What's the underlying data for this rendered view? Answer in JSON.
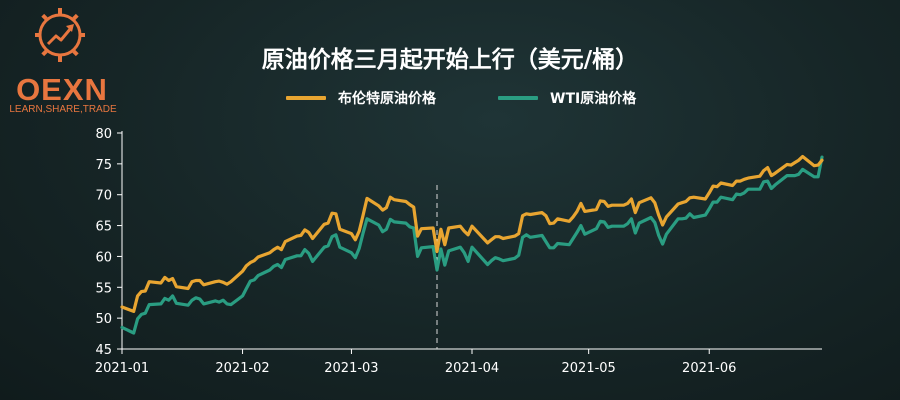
{
  "brand": {
    "name": "OEXN",
    "tagline": "LEARN,SHARE,TRADE",
    "color": "#e8763f"
  },
  "chart_data": {
    "type": "line",
    "title": "原油价格三月起开始上行（美元/桶）",
    "xlabel": "",
    "ylabel": "",
    "ylim": [
      45,
      80
    ],
    "yticks": [
      45,
      50,
      55,
      60,
      65,
      70,
      75,
      80
    ],
    "xlim": [
      "2021-01-01",
      "2021-06-30"
    ],
    "xticks": [
      "2021-01",
      "2021-02",
      "2021-03",
      "2021-04",
      "2021-05",
      "2021-06"
    ],
    "xtick_dates": [
      "2021-01-01",
      "2021-02-01",
      "2021-03-01",
      "2021-04-01",
      "2021-05-01",
      "2021-06-01"
    ],
    "grid": false,
    "legend": "top-center",
    "annotations": [
      {
        "type": "vertical-dashed-line",
        "x": "2021-03-23"
      }
    ],
    "series": [
      {
        "name": "布伦特原油价格",
        "color": "#e8a531",
        "points": [
          [
            "2021-01-01",
            51.8
          ],
          [
            "2021-01-04",
            51.1
          ],
          [
            "2021-01-05",
            53.6
          ],
          [
            "2021-01-06",
            54.3
          ],
          [
            "2021-01-07",
            54.4
          ],
          [
            "2021-01-08",
            55.9
          ],
          [
            "2021-01-11",
            55.7
          ],
          [
            "2021-01-12",
            56.6
          ],
          [
            "2021-01-13",
            56.1
          ],
          [
            "2021-01-14",
            56.4
          ],
          [
            "2021-01-15",
            55.1
          ],
          [
            "2021-01-18",
            54.8
          ],
          [
            "2021-01-19",
            55.9
          ],
          [
            "2021-01-20",
            56.1
          ],
          [
            "2021-01-21",
            56.1
          ],
          [
            "2021-01-22",
            55.4
          ],
          [
            "2021-01-25",
            55.9
          ],
          [
            "2021-01-26",
            56.0
          ],
          [
            "2021-01-27",
            55.8
          ],
          [
            "2021-01-28",
            55.5
          ],
          [
            "2021-01-29",
            55.9
          ],
          [
            "2021-02-01",
            57.6
          ],
          [
            "2021-02-02",
            58.5
          ],
          [
            "2021-02-03",
            59.0
          ],
          [
            "2021-02-04",
            59.3
          ],
          [
            "2021-02-05",
            59.9
          ],
          [
            "2021-02-08",
            60.6
          ],
          [
            "2021-02-09",
            61.1
          ],
          [
            "2021-02-10",
            61.5
          ],
          [
            "2021-02-11",
            61.1
          ],
          [
            "2021-02-12",
            62.4
          ],
          [
            "2021-02-15",
            63.3
          ],
          [
            "2021-02-16",
            63.4
          ],
          [
            "2021-02-17",
            64.3
          ],
          [
            "2021-02-18",
            63.9
          ],
          [
            "2021-02-19",
            62.9
          ],
          [
            "2021-02-22",
            65.2
          ],
          [
            "2021-02-23",
            65.4
          ],
          [
            "2021-02-24",
            67.0
          ],
          [
            "2021-02-25",
            66.9
          ],
          [
            "2021-02-26",
            64.4
          ],
          [
            "2021-03-01",
            63.7
          ],
          [
            "2021-03-02",
            62.7
          ],
          [
            "2021-03-03",
            64.1
          ],
          [
            "2021-03-04",
            66.7
          ],
          [
            "2021-03-05",
            69.4
          ],
          [
            "2021-03-08",
            68.2
          ],
          [
            "2021-03-09",
            67.5
          ],
          [
            "2021-03-10",
            67.9
          ],
          [
            "2021-03-11",
            69.6
          ],
          [
            "2021-03-12",
            69.2
          ],
          [
            "2021-03-15",
            68.9
          ],
          [
            "2021-03-16",
            68.4
          ],
          [
            "2021-03-17",
            68.0
          ],
          [
            "2021-03-18",
            63.3
          ],
          [
            "2021-03-19",
            64.5
          ],
          [
            "2021-03-22",
            64.6
          ],
          [
            "2021-03-23",
            60.8
          ],
          [
            "2021-03-24",
            64.4
          ],
          [
            "2021-03-25",
            61.9
          ],
          [
            "2021-03-26",
            64.6
          ],
          [
            "2021-03-29",
            64.9
          ],
          [
            "2021-03-30",
            64.1
          ],
          [
            "2021-03-31",
            63.5
          ],
          [
            "2021-04-01",
            64.9
          ],
          [
            "2021-04-05",
            62.2
          ],
          [
            "2021-04-06",
            62.7
          ],
          [
            "2021-04-07",
            63.2
          ],
          [
            "2021-04-08",
            63.2
          ],
          [
            "2021-04-09",
            62.9
          ],
          [
            "2021-04-12",
            63.3
          ],
          [
            "2021-04-13",
            63.7
          ],
          [
            "2021-04-14",
            66.6
          ],
          [
            "2021-04-15",
            66.9
          ],
          [
            "2021-04-16",
            66.8
          ],
          [
            "2021-04-19",
            67.1
          ],
          [
            "2021-04-20",
            66.6
          ],
          [
            "2021-04-21",
            65.3
          ],
          [
            "2021-04-22",
            65.4
          ],
          [
            "2021-04-23",
            66.1
          ],
          [
            "2021-04-26",
            65.7
          ],
          [
            "2021-04-27",
            66.4
          ],
          [
            "2021-04-28",
            67.3
          ],
          [
            "2021-04-29",
            68.6
          ],
          [
            "2021-04-30",
            67.3
          ],
          [
            "2021-05-03",
            67.6
          ],
          [
            "2021-05-04",
            69.0
          ],
          [
            "2021-05-05",
            68.9
          ],
          [
            "2021-05-06",
            68.1
          ],
          [
            "2021-05-07",
            68.3
          ],
          [
            "2021-05-10",
            68.3
          ],
          [
            "2021-05-11",
            68.6
          ],
          [
            "2021-05-12",
            69.3
          ],
          [
            "2021-05-13",
            67.1
          ],
          [
            "2021-05-14",
            68.7
          ],
          [
            "2021-05-17",
            69.5
          ],
          [
            "2021-05-18",
            68.7
          ],
          [
            "2021-05-19",
            66.7
          ],
          [
            "2021-05-20",
            65.1
          ],
          [
            "2021-05-21",
            66.4
          ],
          [
            "2021-05-24",
            68.5
          ],
          [
            "2021-05-25",
            68.7
          ],
          [
            "2021-05-26",
            68.9
          ],
          [
            "2021-05-27",
            69.5
          ],
          [
            "2021-05-28",
            69.6
          ],
          [
            "2021-05-31",
            69.3
          ],
          [
            "2021-06-01",
            70.3
          ],
          [
            "2021-06-02",
            71.4
          ],
          [
            "2021-06-03",
            71.3
          ],
          [
            "2021-06-04",
            71.9
          ],
          [
            "2021-06-07",
            71.5
          ],
          [
            "2021-06-08",
            72.2
          ],
          [
            "2021-06-09",
            72.2
          ],
          [
            "2021-06-10",
            72.5
          ],
          [
            "2021-06-11",
            72.7
          ],
          [
            "2021-06-14",
            73.0
          ],
          [
            "2021-06-15",
            73.9
          ],
          [
            "2021-06-16",
            74.4
          ],
          [
            "2021-06-17",
            73.1
          ],
          [
            "2021-06-18",
            73.5
          ],
          [
            "2021-06-21",
            74.9
          ],
          [
            "2021-06-22",
            74.8
          ],
          [
            "2021-06-23",
            75.2
          ],
          [
            "2021-06-24",
            75.6
          ],
          [
            "2021-06-25",
            76.2
          ],
          [
            "2021-06-28",
            74.7
          ],
          [
            "2021-06-29",
            74.8
          ],
          [
            "2021-06-30",
            75.6
          ]
        ]
      },
      {
        "name": "WTI原油价格",
        "color": "#2a9d82",
        "points": [
          [
            "2021-01-01",
            48.5
          ],
          [
            "2021-01-04",
            47.6
          ],
          [
            "2021-01-05",
            49.9
          ],
          [
            "2021-01-06",
            50.6
          ],
          [
            "2021-01-07",
            50.8
          ],
          [
            "2021-01-08",
            52.2
          ],
          [
            "2021-01-11",
            52.3
          ],
          [
            "2021-01-12",
            53.2
          ],
          [
            "2021-01-13",
            52.9
          ],
          [
            "2021-01-14",
            53.6
          ],
          [
            "2021-01-15",
            52.4
          ],
          [
            "2021-01-18",
            52.1
          ],
          [
            "2021-01-19",
            52.9
          ],
          [
            "2021-01-20",
            53.3
          ],
          [
            "2021-01-21",
            53.1
          ],
          [
            "2021-01-22",
            52.3
          ],
          [
            "2021-01-25",
            52.8
          ],
          [
            "2021-01-26",
            52.6
          ],
          [
            "2021-01-27",
            52.9
          ],
          [
            "2021-01-28",
            52.3
          ],
          [
            "2021-01-29",
            52.2
          ],
          [
            "2021-02-01",
            53.6
          ],
          [
            "2021-02-02",
            54.8
          ],
          [
            "2021-02-03",
            56.0
          ],
          [
            "2021-02-04",
            56.2
          ],
          [
            "2021-02-05",
            56.9
          ],
          [
            "2021-02-08",
            57.8
          ],
          [
            "2021-02-09",
            58.4
          ],
          [
            "2021-02-10",
            58.7
          ],
          [
            "2021-02-11",
            58.2
          ],
          [
            "2021-02-12",
            59.5
          ],
          [
            "2021-02-15",
            60.1
          ],
          [
            "2021-02-16",
            60.1
          ],
          [
            "2021-02-17",
            61.1
          ],
          [
            "2021-02-18",
            60.5
          ],
          [
            "2021-02-19",
            59.2
          ],
          [
            "2021-02-22",
            61.5
          ],
          [
            "2021-02-23",
            61.7
          ],
          [
            "2021-02-24",
            63.2
          ],
          [
            "2021-02-25",
            63.5
          ],
          [
            "2021-02-26",
            61.5
          ],
          [
            "2021-03-01",
            60.6
          ],
          [
            "2021-03-02",
            59.8
          ],
          [
            "2021-03-03",
            61.3
          ],
          [
            "2021-03-04",
            63.8
          ],
          [
            "2021-03-05",
            66.1
          ],
          [
            "2021-03-08",
            65.1
          ],
          [
            "2021-03-09",
            64.0
          ],
          [
            "2021-03-10",
            64.4
          ],
          [
            "2021-03-11",
            66.0
          ],
          [
            "2021-03-12",
            65.6
          ],
          [
            "2021-03-15",
            65.4
          ],
          [
            "2021-03-16",
            64.8
          ],
          [
            "2021-03-17",
            64.6
          ],
          [
            "2021-03-18",
            60.0
          ],
          [
            "2021-03-19",
            61.4
          ],
          [
            "2021-03-22",
            61.6
          ],
          [
            "2021-03-23",
            57.8
          ],
          [
            "2021-03-24",
            61.2
          ],
          [
            "2021-03-25",
            58.6
          ],
          [
            "2021-03-26",
            60.9
          ],
          [
            "2021-03-29",
            61.5
          ],
          [
            "2021-03-30",
            60.6
          ],
          [
            "2021-03-31",
            59.2
          ],
          [
            "2021-04-01",
            61.5
          ],
          [
            "2021-04-05",
            58.7
          ],
          [
            "2021-04-06",
            59.3
          ],
          [
            "2021-04-07",
            59.8
          ],
          [
            "2021-04-08",
            59.6
          ],
          [
            "2021-04-09",
            59.3
          ],
          [
            "2021-04-12",
            59.7
          ],
          [
            "2021-04-13",
            60.2
          ],
          [
            "2021-04-14",
            63.1
          ],
          [
            "2021-04-15",
            63.5
          ],
          [
            "2021-04-16",
            63.1
          ],
          [
            "2021-04-19",
            63.4
          ],
          [
            "2021-04-20",
            62.4
          ],
          [
            "2021-04-21",
            61.4
          ],
          [
            "2021-04-22",
            61.4
          ],
          [
            "2021-04-23",
            62.1
          ],
          [
            "2021-04-26",
            61.9
          ],
          [
            "2021-04-27",
            62.9
          ],
          [
            "2021-04-28",
            63.9
          ],
          [
            "2021-04-29",
            65.0
          ],
          [
            "2021-04-30",
            63.6
          ],
          [
            "2021-05-03",
            64.5
          ],
          [
            "2021-05-04",
            65.7
          ],
          [
            "2021-05-05",
            65.6
          ],
          [
            "2021-05-06",
            64.7
          ],
          [
            "2021-05-07",
            64.9
          ],
          [
            "2021-05-10",
            64.9
          ],
          [
            "2021-05-11",
            65.3
          ],
          [
            "2021-05-12",
            66.1
          ],
          [
            "2021-05-13",
            63.8
          ],
          [
            "2021-05-14",
            65.4
          ],
          [
            "2021-05-17",
            66.3
          ],
          [
            "2021-05-18",
            65.5
          ],
          [
            "2021-05-19",
            63.4
          ],
          [
            "2021-05-20",
            62.0
          ],
          [
            "2021-05-21",
            63.6
          ],
          [
            "2021-05-24",
            66.1
          ],
          [
            "2021-05-25",
            66.1
          ],
          [
            "2021-05-26",
            66.2
          ],
          [
            "2021-05-27",
            66.9
          ],
          [
            "2021-05-28",
            66.3
          ],
          [
            "2021-05-31",
            66.7
          ],
          [
            "2021-06-01",
            67.7
          ],
          [
            "2021-06-02",
            68.8
          ],
          [
            "2021-06-03",
            68.8
          ],
          [
            "2021-06-04",
            69.6
          ],
          [
            "2021-06-07",
            69.2
          ],
          [
            "2021-06-08",
            70.1
          ],
          [
            "2021-06-09",
            70.0
          ],
          [
            "2021-06-10",
            70.3
          ],
          [
            "2021-06-11",
            70.9
          ],
          [
            "2021-06-14",
            70.9
          ],
          [
            "2021-06-15",
            72.1
          ],
          [
            "2021-06-16",
            72.2
          ],
          [
            "2021-06-17",
            71.0
          ],
          [
            "2021-06-18",
            71.6
          ],
          [
            "2021-06-21",
            73.1
          ],
          [
            "2021-06-22",
            73.1
          ],
          [
            "2021-06-23",
            73.1
          ],
          [
            "2021-06-24",
            73.3
          ],
          [
            "2021-06-25",
            74.1
          ],
          [
            "2021-06-28",
            72.9
          ],
          [
            "2021-06-29",
            72.9
          ],
          [
            "2021-06-30",
            76.1
          ]
        ]
      }
    ]
  }
}
